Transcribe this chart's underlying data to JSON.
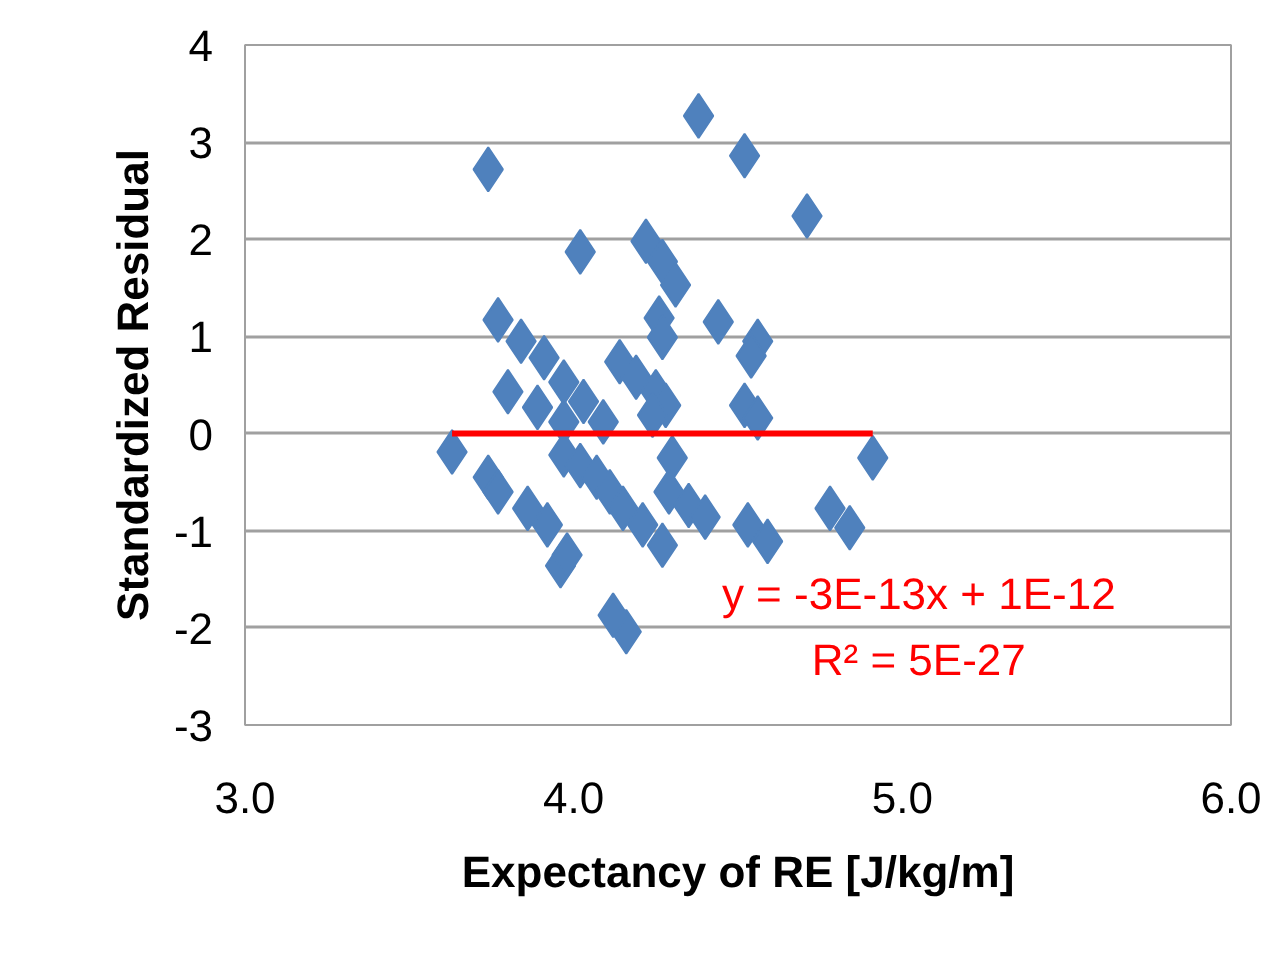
{
  "chart_data": {
    "type": "scatter",
    "xlabel": "Expectancy of RE [J/kg/m]",
    "ylabel": "Standardized Residual",
    "xlim": [
      3.0,
      6.0
    ],
    "xticks": [
      {
        "value": 3,
        "label": "3.0"
      },
      {
        "value": 4,
        "label": "4.0"
      },
      {
        "value": 5,
        "label": "5.0"
      },
      {
        "value": 6,
        "label": "6.0"
      }
    ],
    "ylim": [
      -3,
      4
    ],
    "yticks": [
      -3,
      -2,
      -1,
      0,
      1,
      2,
      3,
      4
    ],
    "grid": "y",
    "annotations": [
      "y = -3E-13x + 1E-12",
      "R² = 5E-27"
    ],
    "series": [
      {
        "marker": "diamond",
        "color": "#4f81bd",
        "x": [
          4.38,
          3.74,
          4.52,
          4.71,
          4.02,
          4.22,
          4.27,
          4.31,
          4.26,
          4.27,
          4.44,
          4.56,
          4.54,
          3.77,
          3.84,
          3.91,
          3.97,
          4.03,
          3.8,
          3.89,
          3.97,
          4.14,
          4.19,
          4.25,
          4.28,
          4.52,
          4.56,
          3.63,
          3.74,
          3.77,
          3.86,
          3.92,
          3.96,
          3.98,
          3.97,
          4.02,
          4.07,
          4.11,
          4.15,
          4.21,
          4.27,
          4.3,
          4.29,
          4.35,
          4.4,
          4.53,
          4.59,
          4.78,
          4.84,
          4.91,
          4.16,
          4.12,
          4.09,
          4.24
        ],
        "values": [
          3.27,
          2.72,
          2.86,
          2.24,
          1.87,
          1.98,
          1.77,
          1.53,
          1.19,
          0.99,
          1.15,
          0.95,
          0.8,
          1.17,
          0.95,
          0.78,
          0.53,
          0.33,
          0.43,
          0.27,
          0.12,
          0.74,
          0.58,
          0.43,
          0.29,
          0.29,
          0.16,
          -0.19,
          -0.45,
          -0.6,
          -0.77,
          -0.94,
          -1.36,
          -1.25,
          -0.22,
          -0.33,
          -0.45,
          -0.6,
          -0.77,
          -0.94,
          -1.15,
          -0.25,
          -0.6,
          -0.74,
          -0.86,
          -0.94,
          -1.11,
          -0.77,
          -0.97,
          -0.25,
          -2.04,
          -1.87,
          0.12,
          0.19
        ]
      },
      {
        "type": "line",
        "marker": "none",
        "color": "#ff0000",
        "x": [
          3.63,
          4.91
        ],
        "values": [
          0,
          0
        ]
      }
    ]
  }
}
